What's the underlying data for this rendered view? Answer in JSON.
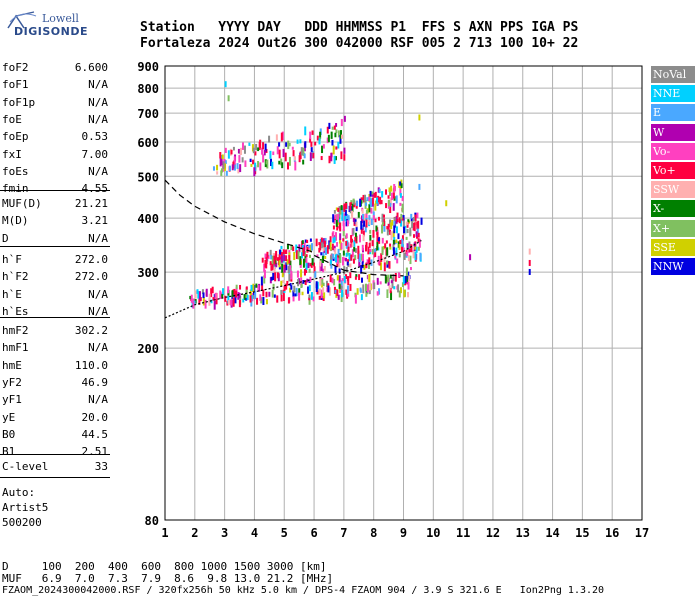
{
  "logo": {
    "line1": "Lowell",
    "line2": "DIGISONDE"
  },
  "header": {
    "line1": "Station   YYYY DAY   DDD HHMMSS P1  FFS S AXN PPS IGA PS",
    "line2": "Fortaleza 2024 Out26 300 042000 RSF 005 2 713 100 10+ 22"
  },
  "params_group1": [
    {
      "k": "foF2",
      "v": "6.600"
    },
    {
      "k": "foF1",
      "v": "N/A"
    },
    {
      "k": "foF1p",
      "v": "N/A"
    },
    {
      "k": "foE",
      "v": "N/A"
    },
    {
      "k": "foEp",
      "v": "0.53"
    },
    {
      "k": "fxI",
      "v": "7.00"
    },
    {
      "k": "foEs",
      "v": "N/A"
    },
    {
      "k": "fmin",
      "v": "4.55"
    }
  ],
  "params_group2": [
    {
      "k": "MUF(D)",
      "v": "21.21"
    },
    {
      "k": "M(D)",
      "v": "3.21"
    },
    {
      "k": "D",
      "v": "N/A"
    }
  ],
  "params_group3": [
    {
      "k": "h`F",
      "v": "272.0"
    },
    {
      "k": "h`F2",
      "v": "272.0"
    },
    {
      "k": "h`E",
      "v": "N/A"
    },
    {
      "k": "h`Es",
      "v": "N/A"
    }
  ],
  "params_group4": [
    {
      "k": "hmF2",
      "v": "302.2"
    },
    {
      "k": "hmF1",
      "v": "N/A"
    },
    {
      "k": "hmE",
      "v": "110.0"
    },
    {
      "k": "yF2",
      "v": "46.9"
    },
    {
      "k": "yF1",
      "v": "N/A"
    },
    {
      "k": "yE",
      "v": "20.0"
    },
    {
      "k": "B0",
      "v": "44.5"
    },
    {
      "k": "B1",
      "v": "2.51"
    }
  ],
  "params_group5": [
    {
      "k": "C-level",
      "v": "33"
    }
  ],
  "auto": {
    "l1": "Auto:",
    "l2": "Artist5",
    "l3": "500200"
  },
  "legend": [
    {
      "label": "NoVal",
      "color": "#8c8c8c"
    },
    {
      "label": "NNE",
      "color": "#00d0ff"
    },
    {
      "label": "E",
      "color": "#4aa8ff"
    },
    {
      "label": "W",
      "color": "#b000b0"
    },
    {
      "label": "Vo-",
      "color": "#ff40c0"
    },
    {
      "label": "Vo+",
      "color": "#ff0040"
    },
    {
      "label": "SSW",
      "color": "#ffb0b0"
    },
    {
      "label": "X-",
      "color": "#008000"
    },
    {
      "label": "X+",
      "color": "#80c060"
    },
    {
      "label": "SSE",
      "color": "#d0d000"
    },
    {
      "label": "NNW",
      "color": "#0000e0"
    }
  ],
  "bottom": {
    "d_line": "D     100  200  400  600  800 1000 1500 3000 [km]",
    "muf_line": "MUF   6.9  7.0  7.3  7.9  8.6  9.8 13.0 21.2 [MHz]",
    "footer": "FZAOM_2024300042000.RSF / 320fx256h 50 kHz 5.0 km / DPS-4 FZAOM 904 / 3.9 S 321.6 E   Ion2Png 1.3.20"
  },
  "chart_data": {
    "type": "scatter",
    "xlim": [
      1,
      17
    ],
    "ylim": [
      80,
      900
    ],
    "y_scale": "log",
    "x_ticks": [
      1,
      2,
      3,
      4,
      5,
      6,
      7,
      8,
      9,
      10,
      11,
      12,
      13,
      14,
      15,
      16,
      17
    ],
    "y_ticks": [
      80,
      200,
      300,
      400,
      500,
      600,
      700,
      800,
      900
    ],
    "grid": true,
    "clusters": [
      {
        "name": "F-trace-low",
        "x0": 1.8,
        "x1": 9.3,
        "y0": 255,
        "y1": 310,
        "n": 260
      },
      {
        "name": "F-trace-mid",
        "x0": 4.2,
        "x1": 9.6,
        "y0": 290,
        "y1": 420,
        "n": 420
      },
      {
        "name": "F-trace-high",
        "x0": 6.6,
        "x1": 9.0,
        "y0": 380,
        "y1": 500,
        "n": 150
      },
      {
        "name": "second-hop",
        "x0": 2.6,
        "x1": 7.0,
        "y0": 510,
        "y1": 690,
        "n": 150
      }
    ],
    "dashed_curve": [
      [
        1,
        490
      ],
      [
        1.5,
        452
      ],
      [
        2,
        426
      ],
      [
        3,
        392
      ],
      [
        4,
        368
      ],
      [
        5,
        350
      ],
      [
        5.9,
        335
      ],
      [
        6,
        328
      ],
      [
        7,
        303
      ],
      [
        8,
        296
      ],
      [
        9,
        294
      ]
    ],
    "solid_curve": [
      [
        1,
        235
      ],
      [
        2,
        252
      ],
      [
        3,
        262
      ],
      [
        4,
        270
      ],
      [
        5,
        279
      ],
      [
        6,
        289
      ],
      [
        7,
        300
      ],
      [
        8,
        316
      ],
      [
        9,
        335
      ],
      [
        9.6,
        355
      ]
    ]
  }
}
